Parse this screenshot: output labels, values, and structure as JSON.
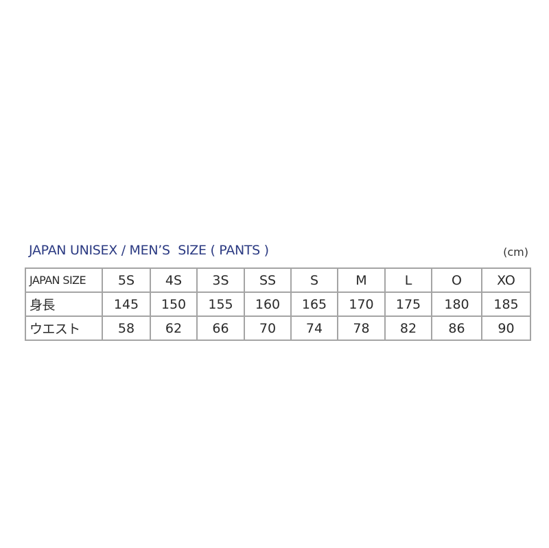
{
  "title": "JAPAN UNISEX / MEN’S  SIZE ( PANTS )",
  "unit": "(cm)",
  "table": {
    "rows": [
      {
        "label": "JAPAN SIZE",
        "values": [
          "5S",
          "4S",
          "3S",
          "SS",
          "S",
          "M",
          "L",
          "O",
          "XO"
        ]
      },
      {
        "label": "身長",
        "values": [
          "145",
          "150",
          "155",
          "160",
          "165",
          "170",
          "175",
          "180",
          "185"
        ]
      },
      {
        "label": "ウエスト",
        "values": [
          "58",
          "62",
          "66",
          "70",
          "74",
          "78",
          "82",
          "86",
          "90"
        ]
      }
    ]
  }
}
